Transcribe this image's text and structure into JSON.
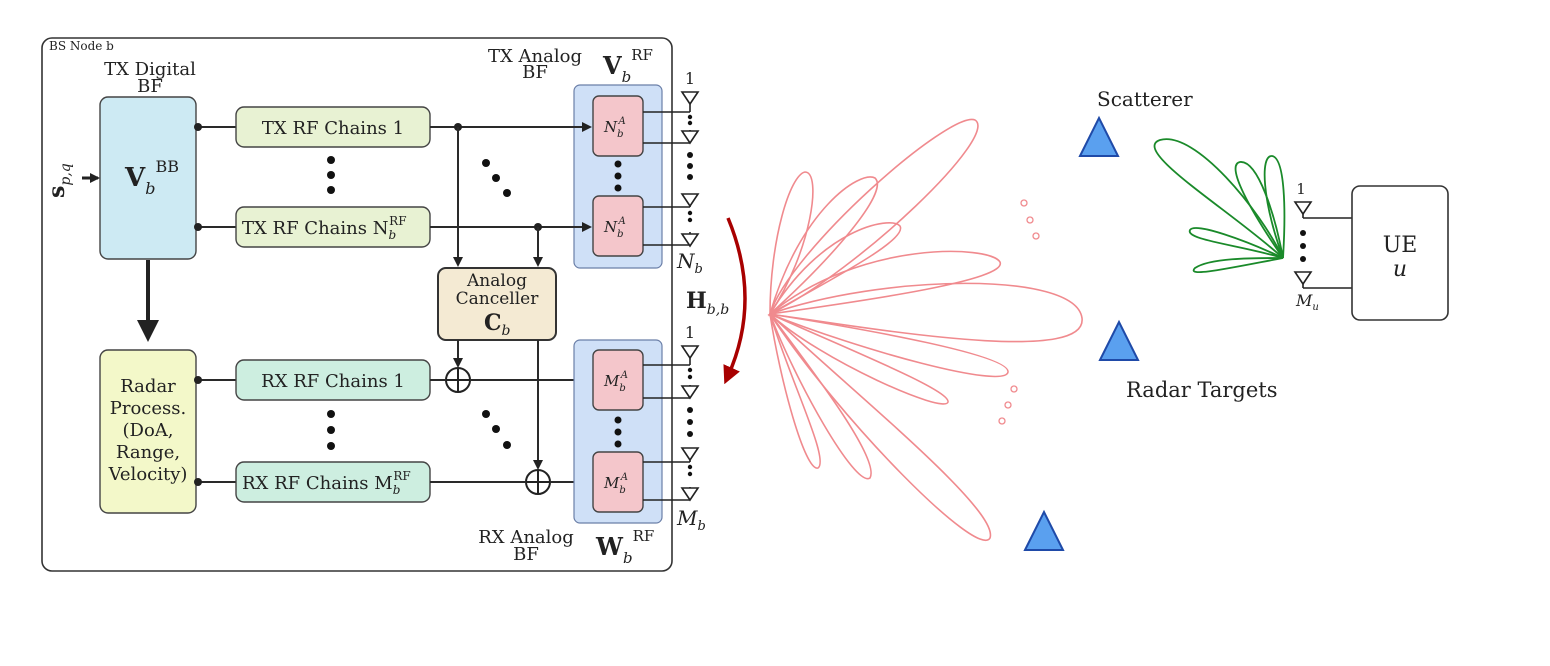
{
  "bs_node": {
    "title": "BS Node b",
    "tx_digital_bf": {
      "line1": "TX Digital",
      "line2": "BF"
    },
    "precoder_bb": {
      "main": "V",
      "sub": "b",
      "sup": "BB"
    },
    "input_signal": {
      "main": "s",
      "sub": "p,q"
    },
    "tx_chain_1": "TX RF Chains 1",
    "tx_chain_n": {
      "text": "TX RF Chains N",
      "sub": "b",
      "sup": "RF"
    },
    "rx_chain_1": "RX RF Chains 1",
    "rx_chain_m": {
      "text": "RX RF Chains M",
      "sub": "b",
      "sup": "RF"
    },
    "tx_analog_bf": {
      "line1": "TX Analog",
      "line2": "BF"
    },
    "rx_analog_bf": {
      "line1": "RX Analog",
      "line2": "BF"
    },
    "tx_rf_matrix": {
      "main": "V",
      "sub": "b",
      "sup": "RF"
    },
    "rx_rf_matrix": {
      "main": "W",
      "sub": "b",
      "sup": "RF"
    },
    "tx_phase_block": {
      "main": "N",
      "sub": "b",
      "sup": "A"
    },
    "rx_phase_block": {
      "main": "M",
      "sub": "b",
      "sup": "A"
    },
    "canceller": {
      "line1": "Analog",
      "line2": "Canceller",
      "main": "C",
      "sub": "b"
    },
    "radar_process": [
      "Radar",
      "Process.",
      "(DoA,",
      "Range,",
      "Velocity)"
    ],
    "tx_ant_first": "1",
    "tx_ant_last": {
      "main": "N",
      "sub": "b"
    },
    "rx_ant_first": "1",
    "rx_ant_last": {
      "main": "M",
      "sub": "b"
    }
  },
  "self_channel": {
    "main": "H",
    "sub": "b,b"
  },
  "scene": {
    "scatterer_label": "Scatterer",
    "radar_targets_label": "Radar Targets"
  },
  "ue": {
    "line1": "UE",
    "line2": "u",
    "ant_first": "1",
    "ant_last": {
      "main": "M",
      "sub": "u"
    }
  },
  "colors": {
    "digital_bf": "#cdeaf3",
    "tx_chain": "#e8f2d3",
    "rx_chain": "#cdeee0",
    "radar_block": "#f3f8c9",
    "analog_panel": "#cfe0f7",
    "phase_block": "#f4c6cb",
    "canceller": "#f4ead3",
    "tx_beam": "#f08a8e",
    "ue_beam": "#1a8a2a",
    "channel_arrow": "#a80000",
    "target": "#5aa0ef"
  }
}
